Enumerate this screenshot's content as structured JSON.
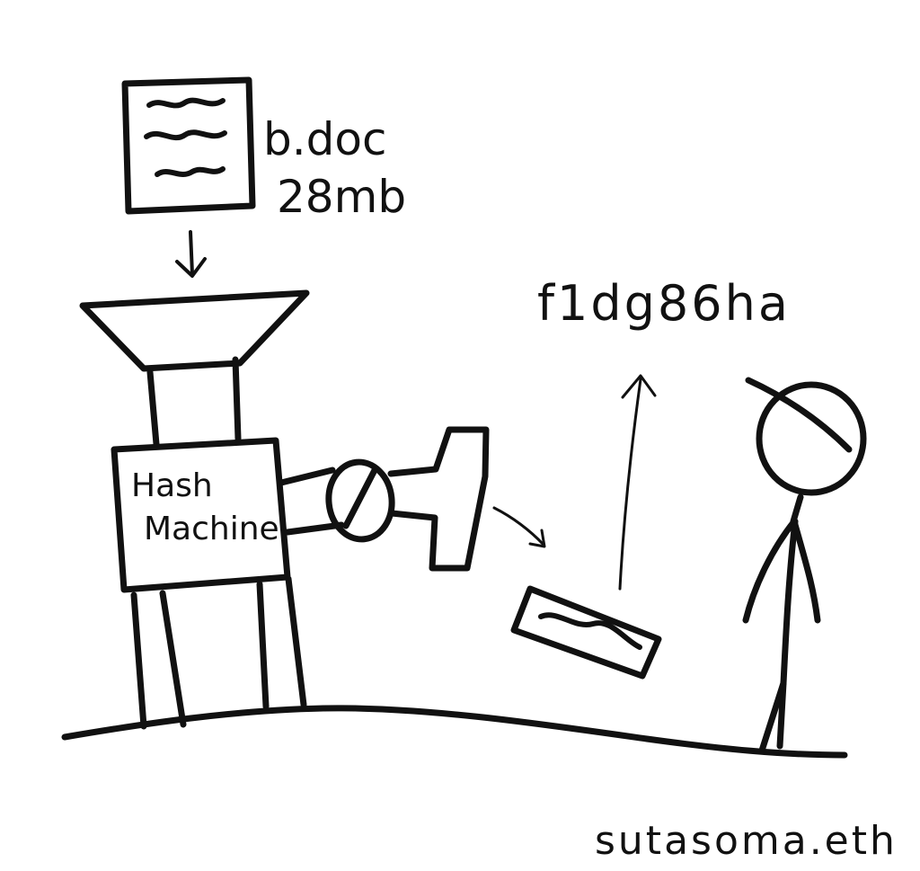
{
  "document": {
    "filename": "b.doc",
    "size": "28mb"
  },
  "machine": {
    "label_line1": "Hash",
    "label_line2": "Machine"
  },
  "hash_output": "f1dg86ha",
  "signature": "sutasoma.eth"
}
